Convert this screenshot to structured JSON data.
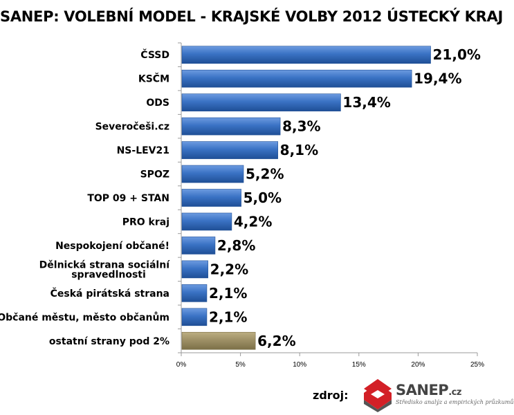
{
  "chart_data": {
    "type": "bar",
    "orientation": "horizontal",
    "title": "SANEP: VOLEBNÍ MODEL - KRAJSKÉ VOLBY 2012 ÚSTECKÝ KRAJ",
    "categories": [
      [
        "ČSSD"
      ],
      [
        "KSČM"
      ],
      [
        "ODS"
      ],
      [
        "Severočeši.cz"
      ],
      [
        "NS-LEV21"
      ],
      [
        "SPOZ"
      ],
      [
        "TOP 09 + STAN"
      ],
      [
        "PRO kraj"
      ],
      [
        "Nespokojení občané!"
      ],
      [
        "Dělnická strana sociální",
        "spravedlnosti"
      ],
      [
        "Česká pirátská strana"
      ],
      [
        "Občané městu, město občanům"
      ],
      [
        "ostatní strany pod 2%"
      ]
    ],
    "values": [
      21.0,
      19.4,
      13.4,
      8.3,
      8.1,
      5.2,
      5.0,
      4.2,
      2.8,
      2.2,
      2.1,
      2.1,
      6.2
    ],
    "value_labels": [
      "21,0%",
      "19,4%",
      "13,4%",
      "8,3%",
      "8,1%",
      "5,2%",
      "5,0%",
      "4,2%",
      "2,8%",
      "2,2%",
      "2,1%",
      "2,1%",
      "6,2%"
    ],
    "xlim": [
      0,
      25
    ],
    "x_ticks": [
      0,
      5,
      10,
      15,
      20,
      25
    ],
    "x_tick_labels": [
      "0%",
      "5%",
      "10%",
      "15%",
      "20%",
      "25%"
    ],
    "grid": false,
    "colors": {
      "bar": "#3a72c4",
      "bar_light": "#6d9be0",
      "bar_dark": "#1f4f96",
      "others": "#9e9066",
      "others_light": "#bcae82",
      "others_dark": "#7c7048",
      "axis": "#9a9a9a"
    }
  },
  "source": {
    "label": "zdroj:",
    "logo_name": "SANEP",
    "logo_suffix": ".cz",
    "tagline": "Středisko analýz a empirických průzkumů",
    "logo_icon": "sanep-logo-icon",
    "colors": {
      "logo_red": "#d32027",
      "logo_gray": "#555555"
    }
  }
}
